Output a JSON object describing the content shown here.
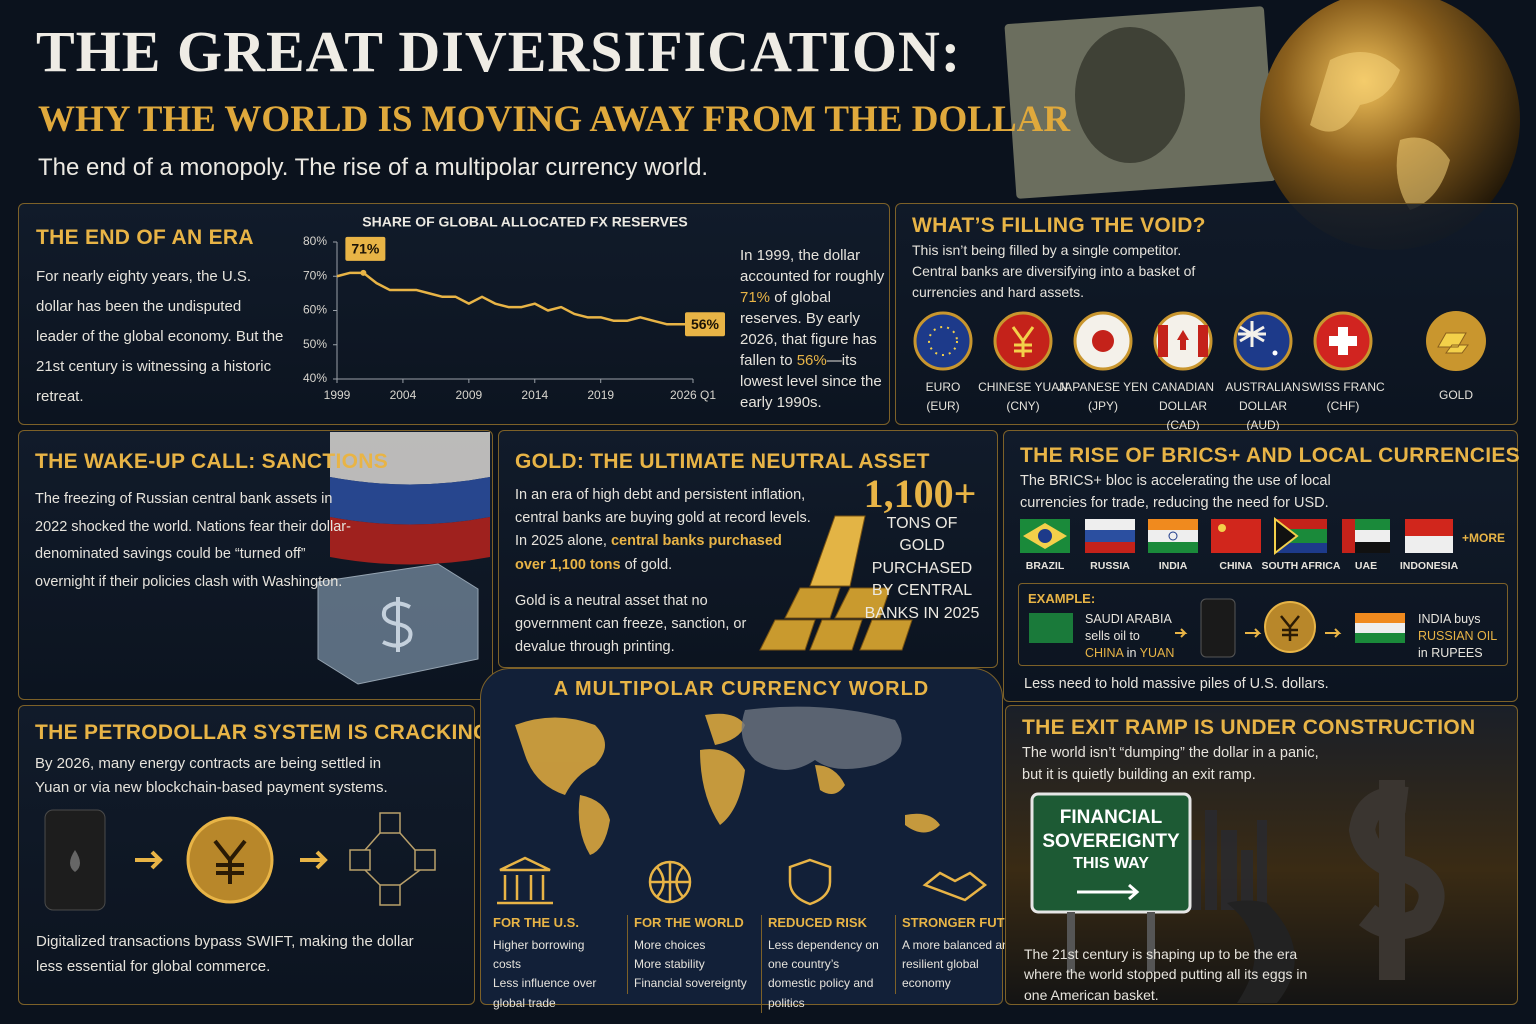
{
  "header": {
    "title": "THE GREAT DIVERSIFICATION:",
    "subtitle": "WHY THE WORLD IS MOVING AWAY FROM THE DOLLAR",
    "tagline": "The end of a monopoly. The rise of a multipolar currency world."
  },
  "end_of_era": {
    "heading": "THE END OF AN ERA",
    "body": "For nearly eighty years, the U.S. dollar has been the undisputed leader of the global economy. But the 21st century is witnessing a historic retreat.",
    "note": [
      "In 1999, the dollar accounted for roughly ",
      "71%",
      " of global reserves. By early 2026, that figure has fallen to ",
      "56%",
      "—its lowest level since the early 1990s."
    ]
  },
  "chart_data": {
    "type": "line",
    "title": "SHARE OF GLOBAL ALLOCATED FX RESERVES",
    "color": "#e8b446",
    "x": [
      1999,
      2000,
      2001,
      2002,
      2003,
      2004,
      2005,
      2006,
      2007,
      2008,
      2009,
      2010,
      2011,
      2012,
      2013,
      2014,
      2015,
      2016,
      2017,
      2018,
      2019,
      2020,
      2021,
      2022,
      2023,
      2024,
      2025,
      2026
    ],
    "values": [
      70,
      71,
      71,
      68,
      66,
      66,
      66,
      65,
      64,
      64,
      62,
      64,
      62,
      61,
      61,
      62,
      60,
      61,
      59,
      58,
      58,
      57,
      57,
      58,
      57,
      56,
      56,
      56
    ],
    "xlim": [
      1999,
      2026
    ],
    "ylim": [
      40,
      80
    ],
    "xticks": [
      1999,
      2004,
      2009,
      2014,
      2019,
      {
        "value": 2026,
        "label": "2026 Q1"
      }
    ],
    "yticks": [
      {
        "value": 40,
        "label": "40%"
      },
      {
        "value": 50,
        "label": "50%"
      },
      {
        "value": 60,
        "label": "60%"
      },
      {
        "value": 70,
        "label": "70%"
      },
      {
        "value": 80,
        "label": "80%"
      }
    ],
    "grid": false,
    "annotations": [
      {
        "x": 2001,
        "y": 71,
        "label": "71%"
      },
      {
        "x": 2026,
        "y": 56,
        "label": "56%"
      }
    ]
  },
  "filling_the_void": {
    "heading": "WHAT’S FILLING THE VOID?",
    "body": "This isn’t being filled by a single competitor. Central banks are diversifying into a basket of currencies and hard assets.",
    "assets": [
      {
        "name": "EURO",
        "code": "(EUR)"
      },
      {
        "name": "CHINESE YUAN",
        "code": "(CNY)"
      },
      {
        "name": "JAPANESE YEN",
        "code": "(JPY)"
      },
      {
        "name": "CANADIAN DOLLAR",
        "code": "(CAD)"
      },
      {
        "name": "AUSTRALIAN DOLLAR",
        "code": "(AUD)"
      },
      {
        "name": "SWISS FRANC",
        "code": "(CHF)"
      },
      {
        "name": "GOLD"
      }
    ]
  },
  "sanctions": {
    "heading": "THE WAKE-UP CALL: SANCTIONS",
    "body": "The freezing of Russian central bank assets in 2022 shocked the world. Nations fear their dollar-denominated savings could be “turned off” overnight if their policies clash with Washington."
  },
  "gold": {
    "heading": "GOLD: THE ULTIMATE NEUTRAL ASSET",
    "body": [
      "In an era of high debt and persistent inflation, central banks are buying gold at record levels. In 2025 alone, ",
      "central banks purchased over 1,100 tons",
      " of gold."
    ],
    "body2": "Gold is a neutral asset that no government can freeze, sanction, or devalue through printing.",
    "stat": "1,100+",
    "stat_label": "TONS OF GOLD PURCHASED BY CENTRAL BANKS IN 2025"
  },
  "brics": {
    "heading": "THE RISE OF BRICS+ AND LOCAL CURRENCIES",
    "body": "The BRICS+ bloc is accelerating the use of local currencies for trade, reducing the need for USD.",
    "countries": [
      "BRAZIL",
      "RUSSIA",
      "INDIA",
      "CHINA",
      "SOUTH AFRICA",
      "UAE",
      "INDONESIA"
    ],
    "more": "+MORE",
    "example_label": "EXAMPLE:",
    "example_1": [
      "SAUDI ARABIA sells oil to ",
      "CHINA",
      " in ",
      "YUAN"
    ],
    "example_2": [
      "INDIA buys ",
      "RUSSIAN OIL",
      " in RUPEES"
    ],
    "footer": "Less need to hold massive piles of U.S. dollars."
  },
  "petrodollar": {
    "heading": "THE PETRODOLLAR SYSTEM IS CRACKING",
    "body": "By 2026, many energy contracts are being settled in Yuan or via new blockchain-based payment systems.",
    "footer": "Digitalized transactions bypass SWIFT, making the dollar less essential for global commerce."
  },
  "multipolar": {
    "heading": "A MULTIPOLAR CURRENCY WORLD",
    "items": [
      {
        "title": "FOR THE U.S.",
        "lines": [
          "Higher borrowing costs",
          "Less influence over global trade"
        ]
      },
      {
        "title": "FOR THE WORLD",
        "lines": [
          "More choices",
          "More stability",
          "Financial sovereignty"
        ]
      },
      {
        "title": "REDUCED RISK",
        "lines": [
          "Less dependency on one country’s domestic policy and politics"
        ]
      },
      {
        "title": "STRONGER FUTURE",
        "lines": [
          "A more balanced and resilient global economy"
        ]
      }
    ]
  },
  "exit_ramp": {
    "heading": "THE EXIT RAMP IS UNDER CONSTRUCTION",
    "body": "The world isn’t “dumping” the dollar in a panic, but it is quietly building an exit ramp.",
    "sign": [
      "FINANCIAL",
      "SOVEREIGNTY",
      "THIS WAY"
    ],
    "footer": "The 21st century is shaping up to be the era where the world stopped putting all its eggs in one American basket."
  }
}
